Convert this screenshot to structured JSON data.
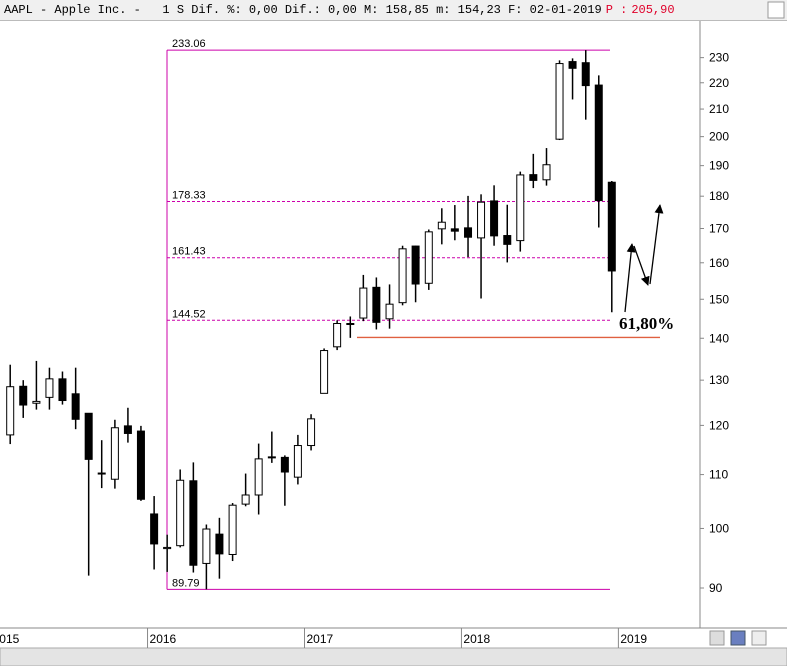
{
  "header": {
    "text": "AAPL - Apple Inc. -   1 S Dif. %: 0,00 Dif.: 0,00 M: 158,85 m: 154,23 F: 02-01-2019",
    "price_label": "P :",
    "price": "205,90"
  },
  "chart_data": {
    "type": "candlestick",
    "log_scale": true,
    "color": "#000000",
    "x": [
      2015.125,
      2015.208,
      2015.292,
      2015.375,
      2015.458,
      2015.542,
      2015.625,
      2015.708,
      2015.792,
      2015.875,
      2015.958,
      2016.042,
      2016.125,
      2016.208,
      2016.292,
      2016.375,
      2016.458,
      2016.542,
      2016.625,
      2016.708,
      2016.792,
      2016.875,
      2016.958,
      2017.042,
      2017.125,
      2017.208,
      2017.292,
      2017.375,
      2017.458,
      2017.542,
      2017.625,
      2017.708,
      2017.792,
      2017.875,
      2017.958,
      2018.042,
      2018.125,
      2018.208,
      2018.292,
      2018.375,
      2018.458,
      2018.542,
      2018.625,
      2018.708,
      2018.792,
      2018.875,
      2018.958
    ],
    "open": [
      118.0,
      128.6,
      124.8,
      126.1,
      130.3,
      126.9,
      122.6,
      110.2,
      109.1,
      119.9,
      118.8,
      102.6,
      96.5,
      97.0,
      108.8,
      94.0,
      99.0,
      95.5,
      104.4,
      106.1,
      113.4,
      113.4,
      109.5,
      115.8,
      127.0,
      137.9,
      143.7,
      145.1,
      153.2,
      144.9,
      149.1,
      164.8,
      154.3,
      169.9,
      169.9,
      170.2,
      167.2,
      178.5,
      167.9,
      166.4,
      187.0,
      185.3,
      199.1,
      228.4,
      227.95,
      219.1,
      184.5
    ],
    "high": [
      133.6,
      130.0,
      134.5,
      132.9,
      132.0,
      132.9,
      122.6,
      116.9,
      121.2,
      123.8,
      119.9,
      105.9,
      98.9,
      111.0,
      112.4,
      100.7,
      101.9,
      104.6,
      110.2,
      116.2,
      118.7,
      113.8,
      118.0,
      122.4,
      137.5,
      144.5,
      145.5,
      156.6,
      155.9,
      153.99,
      164.9,
      164.9,
      169.7,
      176.2,
      177.2,
      180.1,
      180.6,
      183.5,
      177.3,
      188.0,
      194.0,
      196.0,
      228.9,
      229.7,
      233.06,
      222.9,
      184.9
    ],
    "low": [
      116.1,
      121.6,
      123.4,
      123.4,
      124.5,
      119.2,
      92.0,
      107.4,
      107.3,
      116.4,
      105.0,
      93.0,
      92.6,
      96.7,
      92.5,
      89.79,
      91.5,
      94.4,
      104.0,
      102.5,
      112.3,
      104.1,
      108.1,
      114.8,
      127.0,
      137.1,
      140.1,
      144.3,
      142.2,
      142.4,
      148.4,
      149.2,
      152.5,
      165.3,
      166.5,
      161.6,
      150.2,
      164.9,
      160.1,
      163.2,
      182.6,
      183.4,
      198.8,
      213.6,
      206.1,
      170.3,
      146.6
    ],
    "close": [
      128.5,
      124.4,
      125.2,
      130.3,
      125.4,
      121.3,
      113.0,
      110.3,
      119.5,
      118.3,
      105.3,
      97.3,
      96.7,
      108.9,
      93.7,
      99.9,
      95.6,
      104.2,
      106.1,
      113.1,
      113.5,
      110.5,
      115.8,
      121.4,
      136.99,
      143.7,
      143.7,
      153.0,
      144.0,
      148.7,
      164.0,
      154.1,
      169.0,
      171.9,
      169.2,
      167.4,
      178.1,
      167.8,
      165.3,
      186.9,
      185.1,
      190.3,
      227.6,
      225.7,
      218.9,
      178.6,
      157.7
    ],
    "xlim": [
      2015.06,
      2019.52
    ],
    "xticks": [
      2015,
      2016,
      2017,
      2018,
      2019
    ],
    "ylim": [
      84.3,
      245.4
    ],
    "yticks": [
      90,
      100,
      110,
      120,
      130,
      140,
      150,
      160,
      170,
      180,
      190,
      200,
      210,
      220,
      230
    ],
    "fib_levels": [
      233.06,
      178.33,
      161.43,
      144.52,
      89.79
    ],
    "fib_color": "#cc00aa",
    "support_level": 140.2,
    "support_color": "#e06040",
    "annotation": "61,80%"
  }
}
